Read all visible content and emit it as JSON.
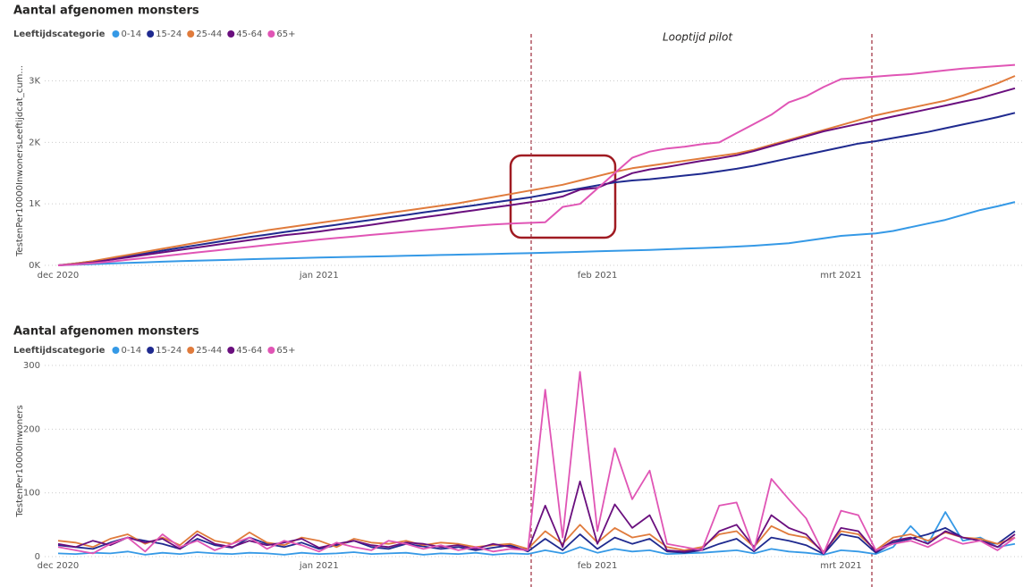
{
  "chart_data": [
    {
      "type": "line",
      "title": "Aantal afgenomen monsters",
      "legend_title": "Leeftijdscategorie",
      "y_label": "TestenPer10000InwonersLeeftijdcat_cum...",
      "annotation": "Looptijd pilot",
      "categories": [
        "dec 2020",
        null,
        null,
        null,
        null,
        null,
        null,
        null,
        null,
        null,
        null,
        null,
        null,
        null,
        null,
        "jan 2021",
        null,
        null,
        null,
        null,
        null,
        null,
        null,
        null,
        null,
        null,
        null,
        null,
        null,
        null,
        null,
        "feb 2021",
        null,
        null,
        null,
        null,
        null,
        null,
        null,
        null,
        null,
        null,
        null,
        null,
        null,
        "mrt 2021",
        null,
        null,
        null,
        null,
        null,
        null,
        null,
        null,
        null,
        null
      ],
      "ylim": [
        0,
        3400
      ],
      "yticks": [
        {
          "value": 0,
          "label": "0K"
        },
        {
          "value": 1000,
          "label": "1K"
        },
        {
          "value": 2000,
          "label": "2K"
        },
        {
          "value": 3000,
          "label": "3K"
        }
      ],
      "grid": true,
      "series": [
        {
          "name": "0-14",
          "color": "#3599e6",
          "values": [
            0,
            10,
            20,
            30,
            40,
            50,
            60,
            68,
            76,
            84,
            92,
            100,
            108,
            114,
            120,
            126,
            132,
            138,
            144,
            150,
            156,
            162,
            168,
            174,
            180,
            186,
            192,
            198,
            205,
            212,
            220,
            228,
            236,
            244,
            252,
            262,
            272,
            282,
            292,
            305,
            320,
            340,
            360,
            400,
            440,
            480,
            500,
            520,
            560,
            620,
            680,
            740,
            820,
            900,
            960,
            1030
          ]
        },
        {
          "name": "15-24",
          "color": "#1f2a8f",
          "values": [
            0,
            30,
            65,
            110,
            150,
            195,
            240,
            285,
            330,
            375,
            420,
            460,
            500,
            540,
            580,
            620,
            660,
            700,
            740,
            780,
            820,
            860,
            900,
            940,
            980,
            1020,
            1060,
            1100,
            1150,
            1200,
            1250,
            1300,
            1350,
            1380,
            1400,
            1430,
            1460,
            1490,
            1530,
            1570,
            1620,
            1680,
            1740,
            1800,
            1860,
            1920,
            1980,
            2020,
            2070,
            2120,
            2170,
            2230,
            2290,
            2350,
            2410,
            2480
          ]
        },
        {
          "name": "25-44",
          "color": "#e07b3c",
          "values": [
            0,
            30,
            70,
            120,
            170,
            220,
            270,
            320,
            370,
            420,
            470,
            520,
            570,
            610,
            650,
            690,
            730,
            770,
            810,
            850,
            890,
            930,
            970,
            1010,
            1060,
            1110,
            1160,
            1210,
            1260,
            1310,
            1380,
            1450,
            1520,
            1580,
            1620,
            1660,
            1700,
            1740,
            1780,
            1820,
            1880,
            1960,
            2040,
            2120,
            2200,
            2280,
            2360,
            2440,
            2500,
            2560,
            2620,
            2680,
            2760,
            2860,
            2960,
            3080
          ]
        },
        {
          "name": "45-64",
          "color": "#6a0f7e",
          "values": [
            0,
            20,
            50,
            90,
            130,
            170,
            210,
            250,
            290,
            330,
            370,
            410,
            450,
            490,
            520,
            550,
            590,
            620,
            660,
            700,
            740,
            780,
            820,
            860,
            900,
            940,
            980,
            1020,
            1060,
            1120,
            1230,
            1260,
            1380,
            1500,
            1560,
            1600,
            1650,
            1700,
            1740,
            1790,
            1860,
            1940,
            2020,
            2100,
            2180,
            2240,
            2300,
            2360,
            2420,
            2480,
            2540,
            2600,
            2660,
            2720,
            2800,
            2880
          ]
        },
        {
          "name": "65+",
          "color": "#e055b5",
          "values": [
            0,
            15,
            35,
            60,
            90,
            120,
            150,
            180,
            210,
            240,
            270,
            300,
            330,
            360,
            390,
            420,
            445,
            470,
            495,
            520,
            545,
            570,
            595,
            620,
            645,
            665,
            680,
            690,
            700,
            950,
            1000,
            1250,
            1500,
            1750,
            1850,
            1900,
            1930,
            1970,
            2000,
            2150,
            2300,
            2450,
            2650,
            2750,
            2900,
            3030,
            3050,
            3070,
            3090,
            3110,
            3140,
            3170,
            3200,
            3220,
            3240,
            3260
          ]
        }
      ]
    },
    {
      "type": "line",
      "title": "Aantal afgenomen monsters",
      "legend_title": "Leeftijdscategorie",
      "y_label": "TestenPer10000Inwoners",
      "categories": [
        "dec 2020",
        null,
        null,
        null,
        null,
        null,
        null,
        null,
        null,
        null,
        null,
        null,
        null,
        null,
        null,
        "jan 2021",
        null,
        null,
        null,
        null,
        null,
        null,
        null,
        null,
        null,
        null,
        null,
        null,
        null,
        null,
        null,
        "feb 2021",
        null,
        null,
        null,
        null,
        null,
        null,
        null,
        null,
        null,
        null,
        null,
        null,
        null,
        "mrt 2021",
        null,
        null,
        null,
        null,
        null,
        null,
        null,
        null,
        null,
        null
      ],
      "ylim": [
        0,
        300
      ],
      "yticks": [
        0,
        100,
        200,
        300
      ],
      "grid": true,
      "series": [
        {
          "name": "0-14",
          "color": "#3599e6",
          "values": [
            5,
            4,
            6,
            5,
            8,
            3,
            6,
            4,
            7,
            5,
            4,
            6,
            5,
            3,
            6,
            4,
            5,
            7,
            4,
            5,
            6,
            3,
            5,
            4,
            6,
            3,
            5,
            4,
            10,
            5,
            15,
            6,
            12,
            8,
            10,
            4,
            5,
            6,
            8,
            10,
            5,
            12,
            8,
            6,
            3,
            10,
            8,
            4,
            15,
            48,
            20,
            70,
            25,
            30,
            15,
            20
          ]
        },
        {
          "name": "15-24",
          "color": "#1f2a8f",
          "values": [
            18,
            15,
            12,
            22,
            30,
            25,
            20,
            12,
            28,
            18,
            14,
            30,
            20,
            15,
            22,
            12,
            18,
            25,
            15,
            12,
            20,
            16,
            12,
            15,
            10,
            14,
            18,
            8,
            28,
            10,
            35,
            12,
            30,
            20,
            28,
            8,
            6,
            10,
            20,
            28,
            8,
            30,
            25,
            18,
            4,
            35,
            30,
            6,
            22,
            28,
            35,
            45,
            30,
            25,
            20,
            40
          ]
        },
        {
          "name": "25-44",
          "color": "#e07b3c",
          "values": [
            25,
            22,
            15,
            28,
            35,
            20,
            30,
            18,
            40,
            25,
            20,
            38,
            22,
            18,
            30,
            25,
            15,
            28,
            22,
            20,
            25,
            18,
            22,
            20,
            15,
            18,
            20,
            12,
            40,
            20,
            50,
            22,
            45,
            30,
            35,
            15,
            10,
            15,
            35,
            40,
            15,
            48,
            35,
            30,
            8,
            40,
            35,
            10,
            30,
            35,
            25,
            38,
            30,
            28,
            20,
            30
          ]
        },
        {
          "name": "45-64",
          "color": "#6a0f7e",
          "values": [
            20,
            15,
            25,
            18,
            30,
            22,
            28,
            12,
            35,
            20,
            15,
            25,
            18,
            22,
            28,
            14,
            20,
            25,
            18,
            15,
            22,
            20,
            15,
            18,
            12,
            20,
            15,
            10,
            80,
            15,
            118,
            20,
            82,
            45,
            65,
            10,
            8,
            12,
            40,
            50,
            15,
            65,
            45,
            35,
            5,
            45,
            40,
            8,
            25,
            30,
            20,
            40,
            30,
            25,
            15,
            35
          ]
        },
        {
          "name": "65+",
          "color": "#e055b5",
          "values": [
            15,
            10,
            5,
            20,
            30,
            8,
            35,
            15,
            25,
            10,
            20,
            30,
            12,
            25,
            18,
            8,
            22,
            15,
            10,
            25,
            20,
            12,
            18,
            10,
            15,
            8,
            12,
            10,
            262,
            30,
            290,
            40,
            170,
            90,
            135,
            20,
            15,
            10,
            80,
            85,
            10,
            122,
            90,
            60,
            5,
            72,
            65,
            10,
            20,
            25,
            15,
            30,
            20,
            25,
            10,
            30
          ]
        }
      ]
    }
  ]
}
